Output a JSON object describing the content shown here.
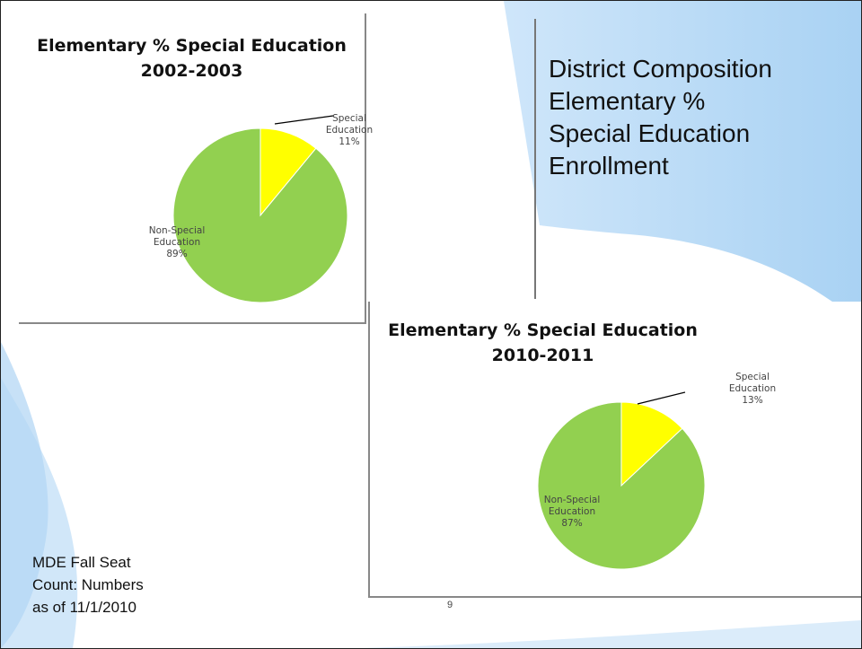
{
  "slide": {
    "heading_lines": [
      "District Composition",
      "Elementary %",
      "Special Education",
      "Enrollment"
    ],
    "source_lines": [
      "MDE Fall Seat",
      "Count: Numbers",
      "as of 11/1/2010"
    ],
    "page_number": "9",
    "colors": {
      "special": "#ffff00",
      "non_special": "#92d050",
      "background_blue": "#bcdcf7"
    }
  },
  "chart_data": [
    {
      "type": "pie",
      "title": "Elementary % Special Education",
      "subtitle": "2002-2003",
      "slices": [
        {
          "label_line1": "Special",
          "label_line2": "Education",
          "pct_label": "11%",
          "value": 11,
          "color": "#ffff00"
        },
        {
          "label_line1": "Non-Special",
          "label_line2": "Education",
          "pct_label": "89%",
          "value": 89,
          "color": "#92d050"
        }
      ]
    },
    {
      "type": "pie",
      "title": "Elementary % Special Education",
      "subtitle": "2010-2011",
      "slices": [
        {
          "label_line1": "Special",
          "label_line2": "Education",
          "pct_label": "13%",
          "value": 13,
          "color": "#ffff00"
        },
        {
          "label_line1": "Non-Special",
          "label_line2": "Education",
          "pct_label": "87%",
          "value": 87,
          "color": "#92d050"
        }
      ]
    }
  ]
}
